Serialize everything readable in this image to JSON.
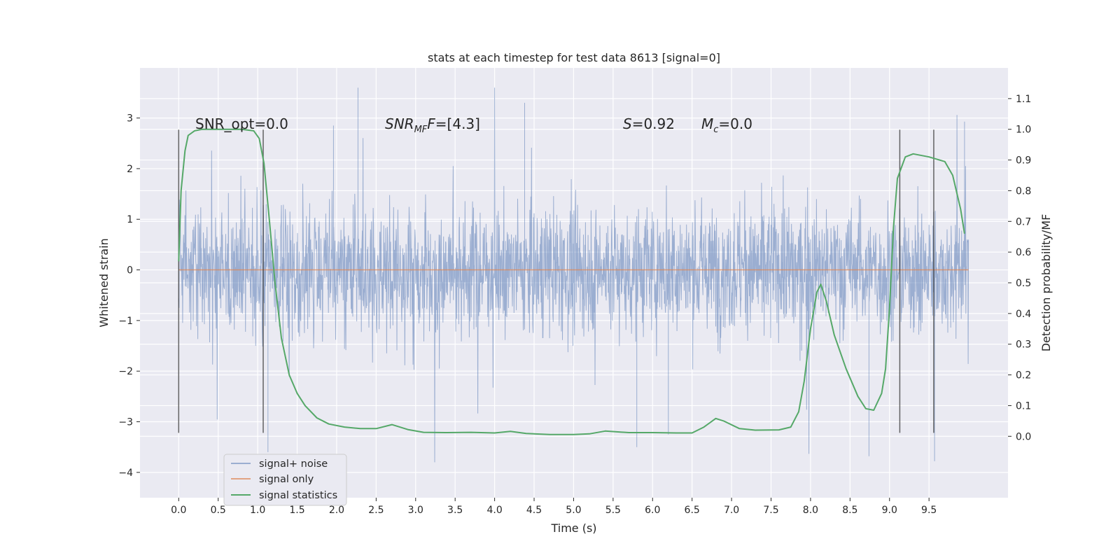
{
  "chart_data": {
    "type": "line",
    "title": "stats at each timestep for test data 8613 [signal=0]",
    "xlabel": "Time (s)",
    "ylabel": "Whitened strain",
    "y2label": "Detection probability/MF",
    "xlim": [
      -0.49,
      10.5
    ],
    "ylim": [
      -4.5,
      3.99
    ],
    "y2lim": [
      -0.2,
      1.2
    ],
    "x_ticks": [
      0.0,
      0.5,
      1.0,
      1.5,
      2.0,
      2.5,
      3.0,
      3.5,
      4.0,
      4.5,
      5.0,
      5.5,
      6.0,
      6.5,
      7.0,
      7.5,
      8.0,
      8.5,
      9.0,
      9.5
    ],
    "x_tick_labels": [
      "0.0",
      "0.5",
      "1.0",
      "1.5",
      "2.0",
      "2.5",
      "3.0",
      "3.5",
      "4.0",
      "4.5",
      "5.0",
      "5.5",
      "6.0",
      "6.5",
      "7.0",
      "7.5",
      "8.0",
      "8.5",
      "9.0",
      "9.5"
    ],
    "y_ticks": [
      -4,
      -3,
      -2,
      -1,
      0,
      1,
      2,
      3
    ],
    "y_tick_labels": [
      "−4",
      "−3",
      "−2",
      "−1",
      "0",
      "1",
      "2",
      "3"
    ],
    "y2_ticks": [
      0.0,
      0.1,
      0.2,
      0.3,
      0.4,
      0.5,
      0.6,
      0.7,
      0.8,
      0.9,
      1.0,
      1.1
    ],
    "y2_tick_labels": [
      "0.0",
      "0.1",
      "0.2",
      "0.3",
      "0.4",
      "0.5",
      "0.6",
      "0.7",
      "0.8",
      "0.9",
      "1.0",
      "1.1"
    ],
    "grid": true,
    "legend_position": "lower-left",
    "series": [
      {
        "name": "signal+ noise",
        "color": "#4c72b0",
        "kind": "noise",
        "x_range": [
          0.0,
          10.0
        ],
        "typical_range": [
          -1.6,
          1.7
        ],
        "min": -3.8,
        "max": 3.6,
        "spikes": [
          {
            "x": 2.27,
            "y": 3.6
          },
          {
            "x": 4.38,
            "y": 3.3
          },
          {
            "x": 9.57,
            "y": -3.78
          },
          {
            "x": 8.74,
            "y": -3.68
          },
          {
            "x": 1.13,
            "y": -3.6
          },
          {
            "x": 5.8,
            "y": -3.5
          },
          {
            "x": 6.2,
            "y": -3.25
          },
          {
            "x": 9.95,
            "y": 2.93
          },
          {
            "x": 1.96,
            "y": 2.85
          }
        ]
      },
      {
        "name": "signal only",
        "color": "#dd8452",
        "kind": "line",
        "x": [
          0.0,
          10.0
        ],
        "y": [
          0.0,
          0.0
        ]
      },
      {
        "name": "signal statistics",
        "color": "#55a868",
        "kind": "line",
        "axis": "right",
        "x": [
          0.0,
          0.03,
          0.08,
          0.12,
          0.2,
          0.3,
          0.5,
          0.8,
          0.95,
          1.02,
          1.08,
          1.15,
          1.22,
          1.3,
          1.4,
          1.5,
          1.6,
          1.75,
          1.9,
          2.1,
          2.3,
          2.5,
          2.7,
          2.9,
          3.1,
          3.4,
          3.7,
          4.0,
          4.2,
          4.4,
          4.7,
          5.0,
          5.2,
          5.4,
          5.7,
          6.0,
          6.3,
          6.5,
          6.65,
          6.8,
          6.9,
          7.1,
          7.3,
          7.6,
          7.75,
          7.85,
          7.92,
          8.0,
          8.08,
          8.13,
          8.2,
          8.3,
          8.45,
          8.6,
          8.7,
          8.8,
          8.9,
          8.95,
          9.0,
          9.05,
          9.1,
          9.2,
          9.3,
          9.5,
          9.7,
          9.8,
          9.9,
          9.95
        ],
        "y": [
          0.57,
          0.8,
          0.93,
          0.98,
          0.995,
          1.0,
          1.0,
          1.0,
          0.995,
          0.97,
          0.89,
          0.7,
          0.5,
          0.32,
          0.2,
          0.14,
          0.1,
          0.06,
          0.04,
          0.03,
          0.025,
          0.025,
          0.038,
          0.022,
          0.013,
          0.012,
          0.013,
          0.011,
          0.016,
          0.009,
          0.006,
          0.006,
          0.008,
          0.017,
          0.012,
          0.012,
          0.011,
          0.011,
          0.03,
          0.058,
          0.05,
          0.025,
          0.02,
          0.021,
          0.03,
          0.08,
          0.18,
          0.35,
          0.47,
          0.495,
          0.44,
          0.33,
          0.22,
          0.13,
          0.09,
          0.085,
          0.14,
          0.22,
          0.42,
          0.68,
          0.84,
          0.91,
          0.92,
          0.91,
          0.895,
          0.85,
          0.74,
          0.66
        ]
      }
    ],
    "vertical_markers": [
      0.0,
      1.07,
      9.13,
      9.56
    ],
    "annotations": [
      {
        "text": "SNR_opt=0.0",
        "x": 0.2
      },
      {
        "text": "SNR",
        "sub": "MF",
        "suffix": "=[4.3]",
        "x": 2.6,
        "italic": true
      },
      {
        "text": "S",
        "suffix": "=0.92",
        "x": 5.6,
        "italic": true
      },
      {
        "text": "M",
        "sub": "c",
        "suffix": "=0.0",
        "x": 6.6,
        "italic": true
      }
    ]
  }
}
